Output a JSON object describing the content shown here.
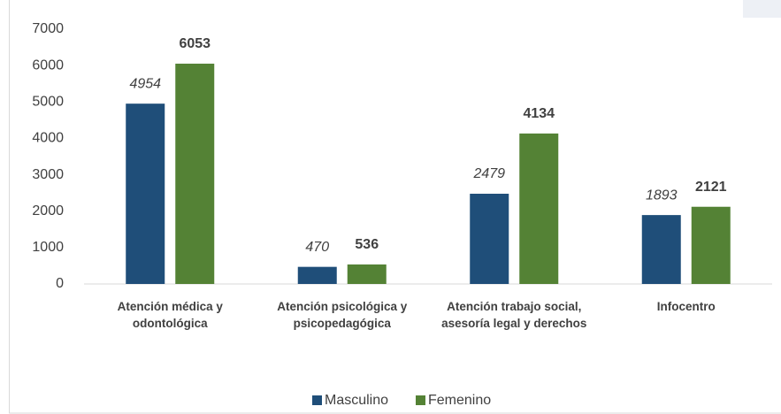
{
  "chart_data": {
    "type": "bar",
    "categories": [
      "Atención médica y odontológica",
      "Atención psicológica y psicopedagógica",
      "Atención trabajo social, asesoría legal y derechos",
      "Infocentro"
    ],
    "series": [
      {
        "name": "Masculino",
        "color": "#1f4e79",
        "values": [
          4954,
          470,
          2479,
          1893
        ]
      },
      {
        "name": "Femenino",
        "color": "#548235",
        "values": [
          6053,
          536,
          4134,
          2121
        ]
      }
    ],
    "ylim": [
      0,
      7000
    ],
    "yticks": [
      0,
      1000,
      2000,
      3000,
      4000,
      5000,
      6000,
      7000
    ],
    "grid": false,
    "legend": "bottom"
  }
}
